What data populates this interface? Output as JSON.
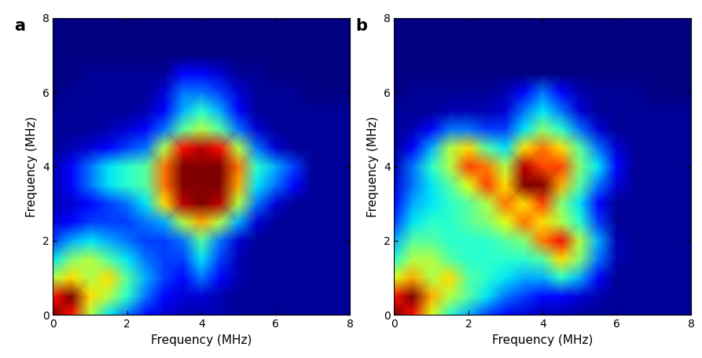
{
  "chart_data": [
    {
      "type": "heatmap",
      "panel_label": "a",
      "xlabel": "Frequency (MHz)",
      "ylabel": "Frequency (MHz)",
      "color": "jet",
      "xlim": [
        0,
        8
      ],
      "ylim": [
        0,
        8
      ],
      "xticks": [
        0,
        2,
        4,
        6,
        8
      ],
      "yticks": [
        0,
        2,
        4,
        6,
        8
      ],
      "x": [
        0,
        0.5,
        1,
        1.5,
        2,
        2.5,
        3,
        3.5,
        4,
        4.5,
        5,
        5.5,
        6,
        6.5,
        7,
        7.5,
        8
      ],
      "y": [
        0,
        0.5,
        1,
        1.5,
        2,
        2.5,
        3,
        3.5,
        4,
        4.5,
        5,
        5.5,
        6,
        6.5,
        7,
        7.5,
        8
      ],
      "cells": [
        [
          1.0,
          0.9,
          0.6,
          0.4,
          0.3,
          0.2,
          0.15,
          0.12,
          0.12,
          0.12,
          0.1,
          0.1,
          0.1,
          0.1,
          0.1,
          0.1,
          0.1
        ],
        [
          0.9,
          1.0,
          0.7,
          0.6,
          0.45,
          0.3,
          0.2,
          0.15,
          0.15,
          0.12,
          0.1,
          0.1,
          0.1,
          0.1,
          0.1,
          0.1,
          0.1
        ],
        [
          0.6,
          0.7,
          0.6,
          0.7,
          0.5,
          0.35,
          0.25,
          0.2,
          0.3,
          0.2,
          0.12,
          0.1,
          0.1,
          0.1,
          0.1,
          0.1,
          0.1
        ],
        [
          0.4,
          0.55,
          0.6,
          0.5,
          0.4,
          0.3,
          0.25,
          0.25,
          0.4,
          0.25,
          0.12,
          0.1,
          0.1,
          0.1,
          0.1,
          0.1,
          0.1
        ],
        [
          0.25,
          0.35,
          0.4,
          0.35,
          0.3,
          0.25,
          0.25,
          0.3,
          0.5,
          0.3,
          0.15,
          0.1,
          0.1,
          0.1,
          0.1,
          0.1,
          0.1
        ],
        [
          0.15,
          0.2,
          0.25,
          0.25,
          0.25,
          0.3,
          0.35,
          0.6,
          0.75,
          0.6,
          0.35,
          0.15,
          0.1,
          0.1,
          0.1,
          0.1,
          0.1
        ],
        [
          0.12,
          0.15,
          0.2,
          0.25,
          0.3,
          0.4,
          0.7,
          0.95,
          1.0,
          0.95,
          0.6,
          0.3,
          0.15,
          0.1,
          0.1,
          0.1,
          0.1
        ],
        [
          0.12,
          0.2,
          0.3,
          0.4,
          0.45,
          0.5,
          0.8,
          1.0,
          1.0,
          1.0,
          0.75,
          0.4,
          0.3,
          0.2,
          0.1,
          0.1,
          0.1
        ],
        [
          0.12,
          0.2,
          0.3,
          0.4,
          0.45,
          0.5,
          0.8,
          1.0,
          1.0,
          1.0,
          0.8,
          0.45,
          0.35,
          0.25,
          0.1,
          0.1,
          0.1
        ],
        [
          0.1,
          0.12,
          0.15,
          0.2,
          0.25,
          0.3,
          0.6,
          0.9,
          0.95,
          0.9,
          0.6,
          0.3,
          0.15,
          0.1,
          0.1,
          0.1,
          0.1
        ],
        [
          0.1,
          0.1,
          0.1,
          0.12,
          0.15,
          0.2,
          0.3,
          0.5,
          0.6,
          0.5,
          0.3,
          0.15,
          0.1,
          0.1,
          0.1,
          0.1,
          0.1
        ],
        [
          0.1,
          0.1,
          0.1,
          0.1,
          0.1,
          0.12,
          0.2,
          0.35,
          0.45,
          0.35,
          0.2,
          0.1,
          0.1,
          0.1,
          0.1,
          0.1,
          0.1
        ],
        [
          0.08,
          0.1,
          0.1,
          0.1,
          0.1,
          0.1,
          0.15,
          0.3,
          0.3,
          0.25,
          0.15,
          0.1,
          0.1,
          0.1,
          0.08,
          0.08,
          0.08
        ],
        [
          0.08,
          0.08,
          0.1,
          0.1,
          0.1,
          0.1,
          0.1,
          0.2,
          0.2,
          0.15,
          0.1,
          0.1,
          0.08,
          0.08,
          0.08,
          0.08,
          0.08
        ],
        [
          0.08,
          0.08,
          0.08,
          0.08,
          0.08,
          0.08,
          0.08,
          0.08,
          0.08,
          0.08,
          0.08,
          0.08,
          0.08,
          0.08,
          0.08,
          0.08,
          0.08
        ],
        [
          0.08,
          0.08,
          0.08,
          0.08,
          0.08,
          0.08,
          0.08,
          0.08,
          0.08,
          0.08,
          0.08,
          0.08,
          0.08,
          0.08,
          0.08,
          0.08,
          0.08
        ],
        [
          0.08,
          0.08,
          0.08,
          0.08,
          0.08,
          0.08,
          0.08,
          0.08,
          0.08,
          0.08,
          0.08,
          0.08,
          0.08,
          0.08,
          0.08,
          0.08,
          0.08
        ]
      ]
    },
    {
      "type": "heatmap",
      "panel_label": "b",
      "xlabel": "Frequency (MHz)",
      "ylabel": "Frequency (MHz)",
      "color": "jet",
      "xlim": [
        0,
        8
      ],
      "ylim": [
        0,
        8
      ],
      "xticks": [
        0,
        2,
        4,
        6,
        8
      ],
      "yticks": [
        0,
        2,
        4,
        6,
        8
      ],
      "x": [
        0,
        0.5,
        1,
        1.5,
        2,
        2.5,
        3,
        3.5,
        4,
        4.5,
        5,
        5.5,
        6,
        6.5,
        7,
        7.5,
        8
      ],
      "y": [
        0,
        0.5,
        1,
        1.5,
        2,
        2.5,
        3,
        3.5,
        4,
        4.5,
        5,
        5.5,
        6,
        6.5,
        7,
        7.5,
        8
      ],
      "cells": [
        [
          1.0,
          0.9,
          0.65,
          0.45,
          0.35,
          0.25,
          0.2,
          0.15,
          0.12,
          0.12,
          0.1,
          0.1,
          0.1,
          0.1,
          0.1,
          0.1,
          0.1
        ],
        [
          0.9,
          1.0,
          0.75,
          0.6,
          0.5,
          0.4,
          0.3,
          0.25,
          0.2,
          0.2,
          0.15,
          0.12,
          0.1,
          0.1,
          0.1,
          0.1,
          0.1
        ],
        [
          0.65,
          0.75,
          0.6,
          0.7,
          0.5,
          0.45,
          0.4,
          0.35,
          0.35,
          0.45,
          0.35,
          0.2,
          0.1,
          0.1,
          0.1,
          0.1,
          0.1
        ],
        [
          0.45,
          0.6,
          0.6,
          0.5,
          0.45,
          0.45,
          0.45,
          0.45,
          0.5,
          0.7,
          0.55,
          0.3,
          0.12,
          0.1,
          0.1,
          0.1,
          0.1
        ],
        [
          0.35,
          0.5,
          0.5,
          0.45,
          0.45,
          0.45,
          0.5,
          0.55,
          0.8,
          0.9,
          0.6,
          0.35,
          0.12,
          0.1,
          0.1,
          0.1,
          0.1
        ],
        [
          0.25,
          0.4,
          0.45,
          0.45,
          0.5,
          0.55,
          0.65,
          0.8,
          0.7,
          0.6,
          0.45,
          0.25,
          0.1,
          0.1,
          0.1,
          0.1,
          0.1
        ],
        [
          0.2,
          0.35,
          0.4,
          0.45,
          0.5,
          0.6,
          0.8,
          0.7,
          0.85,
          0.55,
          0.4,
          0.2,
          0.1,
          0.1,
          0.1,
          0.1,
          0.1
        ],
        [
          0.15,
          0.3,
          0.4,
          0.5,
          0.65,
          0.85,
          0.7,
          1.0,
          1.0,
          0.75,
          0.5,
          0.3,
          0.15,
          0.1,
          0.1,
          0.1,
          0.1
        ],
        [
          0.12,
          0.3,
          0.45,
          0.6,
          0.85,
          0.8,
          0.6,
          0.95,
          0.85,
          0.85,
          0.55,
          0.4,
          0.2,
          0.1,
          0.1,
          0.1,
          0.1
        ],
        [
          0.1,
          0.2,
          0.35,
          0.6,
          0.7,
          0.5,
          0.4,
          0.7,
          0.8,
          0.7,
          0.5,
          0.3,
          0.15,
          0.1,
          0.1,
          0.1,
          0.1
        ],
        [
          0.1,
          0.12,
          0.2,
          0.3,
          0.3,
          0.25,
          0.25,
          0.4,
          0.55,
          0.45,
          0.3,
          0.15,
          0.1,
          0.1,
          0.1,
          0.1,
          0.1
        ],
        [
          0.1,
          0.1,
          0.1,
          0.12,
          0.12,
          0.12,
          0.15,
          0.3,
          0.4,
          0.3,
          0.15,
          0.1,
          0.1,
          0.1,
          0.1,
          0.1,
          0.1
        ],
        [
          0.08,
          0.1,
          0.1,
          0.1,
          0.1,
          0.1,
          0.12,
          0.2,
          0.3,
          0.2,
          0.12,
          0.1,
          0.1,
          0.1,
          0.08,
          0.08,
          0.08
        ],
        [
          0.08,
          0.08,
          0.08,
          0.08,
          0.08,
          0.08,
          0.08,
          0.08,
          0.08,
          0.08,
          0.08,
          0.08,
          0.08,
          0.08,
          0.08,
          0.08,
          0.08
        ],
        [
          0.08,
          0.08,
          0.08,
          0.08,
          0.08,
          0.08,
          0.08,
          0.08,
          0.08,
          0.08,
          0.08,
          0.08,
          0.08,
          0.08,
          0.08,
          0.08,
          0.08
        ],
        [
          0.08,
          0.08,
          0.08,
          0.08,
          0.08,
          0.08,
          0.08,
          0.08,
          0.08,
          0.08,
          0.08,
          0.08,
          0.08,
          0.08,
          0.08,
          0.08,
          0.08
        ],
        [
          0.08,
          0.08,
          0.08,
          0.08,
          0.08,
          0.08,
          0.08,
          0.08,
          0.08,
          0.08,
          0.08,
          0.08,
          0.08,
          0.08,
          0.08,
          0.08,
          0.08
        ]
      ]
    }
  ]
}
